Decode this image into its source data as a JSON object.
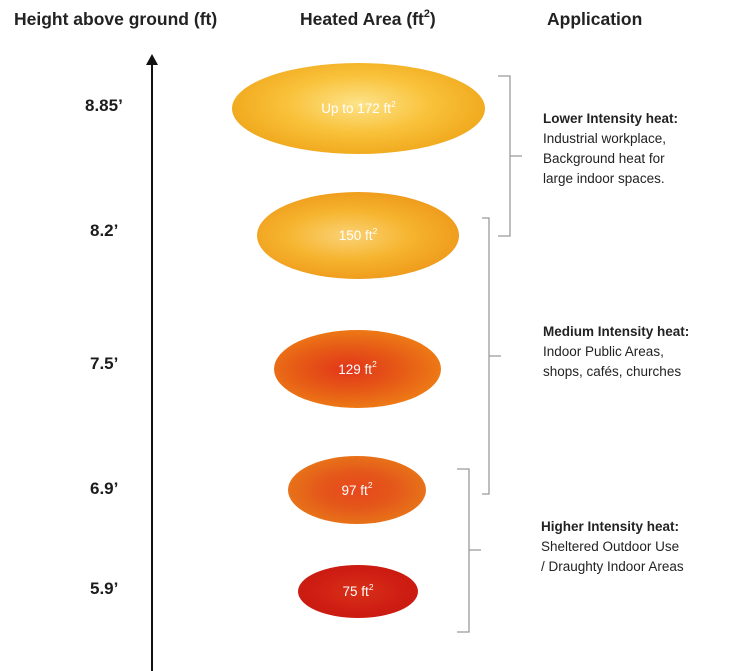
{
  "headers": {
    "height": "Height above ground (ft)",
    "area_base": "Heated Area (ft",
    "area_sup": "2",
    "area_tail": ")",
    "application": "Application"
  },
  "heights": [
    "8.85’",
    "8.2’",
    "7.5’",
    "6.9’",
    "5.9’"
  ],
  "areas": [
    {
      "text": "Up to 172 ft",
      "sup": "2",
      "color": "#f9c23b"
    },
    {
      "text": "150 ft",
      "sup": "2",
      "color": "#f6b42e"
    },
    {
      "text": "129 ft",
      "sup": "2",
      "color": "#e65a16"
    },
    {
      "text": "97 ft",
      "sup": "2",
      "color": "#e4561a"
    },
    {
      "text": "75 ft",
      "sup": "2",
      "color": "#cf1f14"
    }
  ],
  "applications": [
    {
      "title": "Lower Intensity heat:",
      "lines": [
        "Industrial workplace,",
        "Background heat for",
        "large indoor spaces."
      ]
    },
    {
      "title": "Medium Intensity heat:",
      "lines": [
        "Indoor Public Areas,",
        "shops, cafés, churches"
      ]
    },
    {
      "title": "Higher Intensity heat:",
      "lines": [
        "Sheltered Outdoor Use",
        "/ Draughty Indoor Areas"
      ]
    }
  ]
}
